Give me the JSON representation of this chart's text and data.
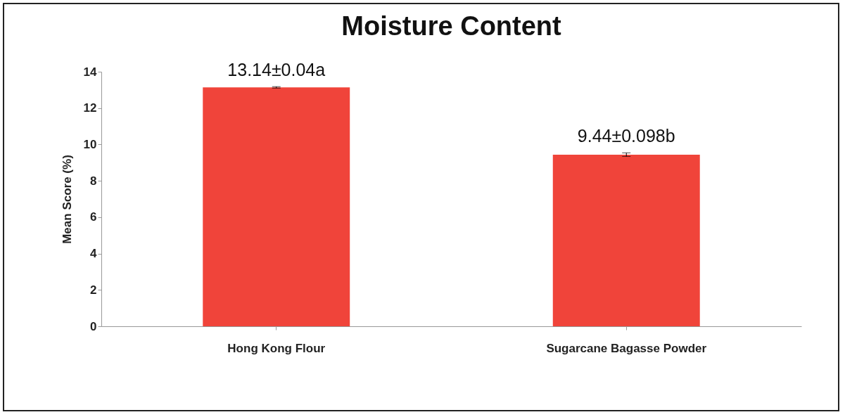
{
  "chart_data": {
    "type": "bar",
    "title": "Moisture Content",
    "ylabel": "Mean Score (%)",
    "categories": [
      "Hong Kong Flour",
      "Sugarcane Bagasse Powder"
    ],
    "values": [
      13.14,
      9.44
    ],
    "errors": [
      0.04,
      0.098
    ],
    "color": "#f0443a",
    "value_labels": [
      "13.14±0.04a",
      "9.44±0.098b"
    ],
    "ylim": [
      0,
      14
    ],
    "yticks": [
      0,
      2,
      4,
      6,
      8,
      10,
      12,
      14
    ],
    "grid": false
  }
}
